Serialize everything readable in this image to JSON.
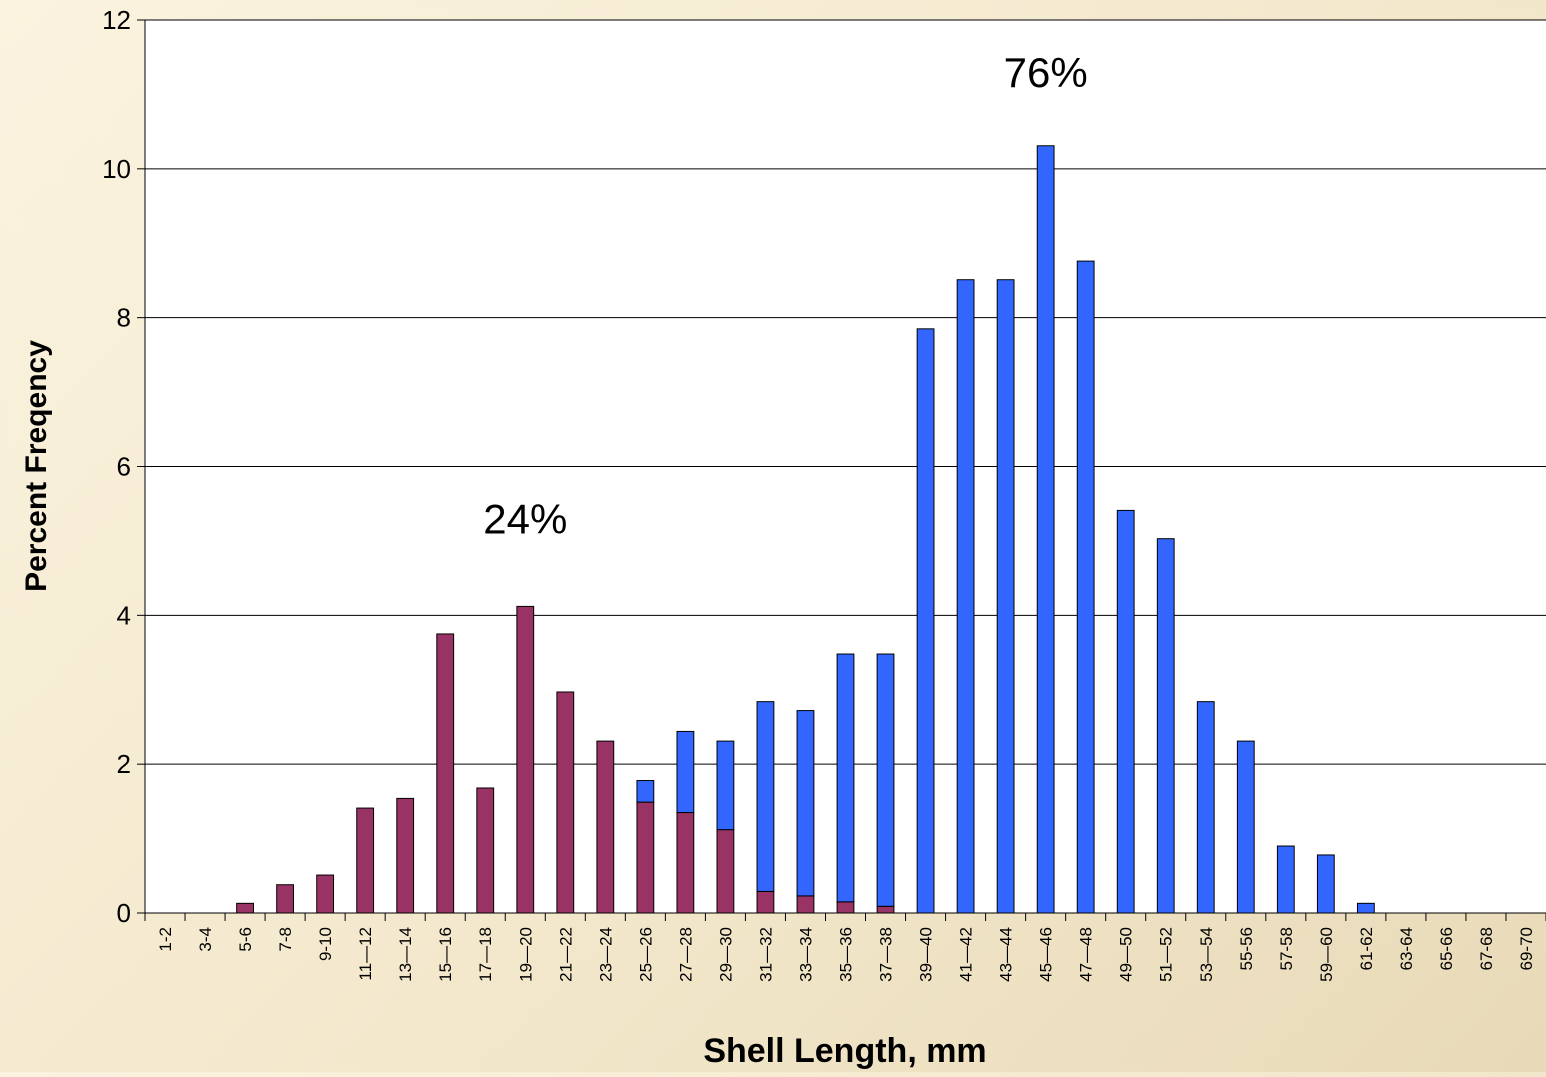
{
  "colors": {
    "maroon": "#993366",
    "blue": "#3366ff",
    "plot_bg": "#ffffff",
    "gridline": "#000000"
  },
  "chart_data": {
    "type": "bar",
    "stacked": true,
    "title": "",
    "xlabel": "Shell Length, mm",
    "ylabel": "Percent Freqency",
    "ylim": [
      0,
      12
    ],
    "yticks": [
      0,
      2,
      4,
      6,
      8,
      10,
      12
    ],
    "grid": true,
    "categories": [
      "1-2",
      "3-4",
      "5-6",
      "7-8",
      "9-10",
      "11—12",
      "13—14",
      "15—16",
      "17—18",
      "19—20",
      "21—22",
      "23—24",
      "25—26",
      "27—28",
      "29—30",
      "31—32",
      "33—34",
      "35—36",
      "37—38",
      "39—40",
      "41—42",
      "43—44",
      "45—46",
      "47—48",
      "49—50",
      "51—52",
      "53—54",
      "55-56",
      "57-58",
      "59—60",
      "61-62",
      "63-64",
      "65-66",
      "67-68",
      "69-70"
    ],
    "series": [
      {
        "color": "#993366",
        "values": [
          0,
          0,
          0.13,
          0.38,
          0.51,
          1.41,
          1.54,
          3.75,
          1.68,
          4.12,
          2.97,
          2.31,
          1.49,
          1.35,
          1.12,
          0.29,
          0.23,
          0.15,
          0.09,
          0,
          0,
          0,
          0,
          0,
          0,
          0,
          0,
          0,
          0,
          0,
          0,
          0,
          0,
          0,
          0
        ]
      },
      {
        "color": "#3366ff",
        "values": [
          0,
          0,
          0,
          0,
          0,
          0,
          0,
          0,
          0,
          0,
          0,
          0,
          0.29,
          1.09,
          1.19,
          2.55,
          2.49,
          3.33,
          3.39,
          7.85,
          8.51,
          8.51,
          10.31,
          8.76,
          5.41,
          5.03,
          2.84,
          2.31,
          0.9,
          0.78,
          0.13,
          0,
          0,
          0,
          0
        ]
      }
    ],
    "annotations": [
      {
        "text": "24%",
        "x": "19—20",
        "y": 5.1
      },
      {
        "text": "76%",
        "x": "45—46",
        "y": 11.1
      }
    ]
  }
}
